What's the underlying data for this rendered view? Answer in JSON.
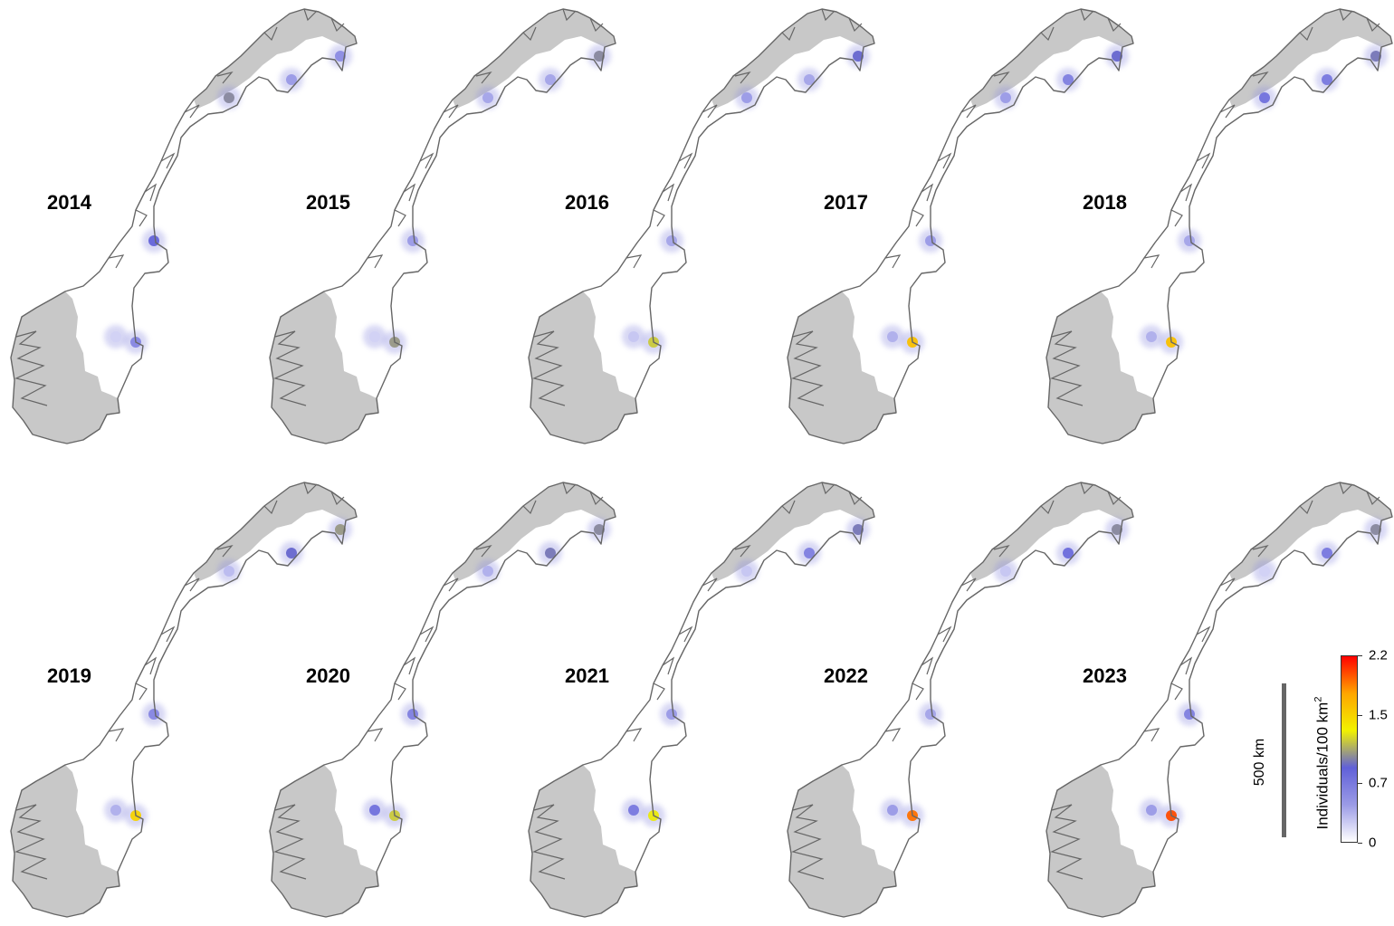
{
  "figure": {
    "panels": [
      {
        "year": "2014",
        "hotspots": [
          {
            "region": "finnmark-east",
            "level": 0.45
          },
          {
            "region": "finnmark-northeast",
            "level": 0.55
          },
          {
            "region": "troms",
            "level": 1.0
          },
          {
            "region": "nordland-south",
            "level": 0.85
          },
          {
            "region": "hedmark",
            "level": 0.6
          },
          {
            "region": "oppland",
            "level": 0.2
          }
        ]
      },
      {
        "year": "2015",
        "hotspots": [
          {
            "region": "finnmark-east",
            "level": 0.4
          },
          {
            "region": "finnmark-northeast",
            "level": 1.0
          },
          {
            "region": "troms",
            "level": 0.4
          },
          {
            "region": "nordland-south",
            "level": 0.45
          },
          {
            "region": "hedmark",
            "level": 1.05
          },
          {
            "region": "oppland",
            "level": 0.2
          }
        ]
      },
      {
        "year": "2016",
        "hotspots": [
          {
            "region": "finnmark-east",
            "level": 0.4
          },
          {
            "region": "finnmark-northeast",
            "level": 0.9
          },
          {
            "region": "troms",
            "level": 0.45
          },
          {
            "region": "nordland-south",
            "level": 0.4
          },
          {
            "region": "hedmark",
            "level": 1.2
          },
          {
            "region": "oppland",
            "level": 0.25
          }
        ]
      },
      {
        "year": "2017",
        "hotspots": [
          {
            "region": "finnmark-east",
            "level": 0.65
          },
          {
            "region": "finnmark-northeast",
            "level": 0.9
          },
          {
            "region": "troms",
            "level": 0.45
          },
          {
            "region": "nordland-south",
            "level": 0.45
          },
          {
            "region": "hedmark",
            "level": 1.6
          },
          {
            "region": "oppland",
            "level": 0.35
          }
        ]
      },
      {
        "year": "2018",
        "hotspots": [
          {
            "region": "finnmark-east",
            "level": 0.7
          },
          {
            "region": "finnmark-northeast",
            "level": 0.95
          },
          {
            "region": "troms",
            "level": 0.75
          },
          {
            "region": "nordland-south",
            "level": 0.4
          },
          {
            "region": "hedmark",
            "level": 1.6
          },
          {
            "region": "oppland",
            "level": 0.35
          }
        ]
      },
      {
        "year": "2019",
        "hotspots": [
          {
            "region": "finnmark-east",
            "level": 0.9
          },
          {
            "region": "finnmark-northeast",
            "level": 1.05
          },
          {
            "region": "troms",
            "level": 0.3
          },
          {
            "region": "nordland-south",
            "level": 0.6
          },
          {
            "region": "hedmark",
            "level": 1.5
          },
          {
            "region": "oppland",
            "level": 0.35
          }
        ]
      },
      {
        "year": "2020",
        "hotspots": [
          {
            "region": "finnmark-east",
            "level": 0.95
          },
          {
            "region": "finnmark-northeast",
            "level": 1.0
          },
          {
            "region": "troms",
            "level": 0.35
          },
          {
            "region": "nordland-south",
            "level": 0.65
          },
          {
            "region": "hedmark",
            "level": 1.2
          },
          {
            "region": "oppland",
            "level": 0.75
          }
        ]
      },
      {
        "year": "2021",
        "hotspots": [
          {
            "region": "finnmark-east",
            "level": 0.65
          },
          {
            "region": "finnmark-northeast",
            "level": 0.95
          },
          {
            "region": "troms",
            "level": 0.25
          },
          {
            "region": "nordland-south",
            "level": 0.45
          },
          {
            "region": "hedmark",
            "level": 1.3
          },
          {
            "region": "oppland",
            "level": 0.7
          }
        ]
      },
      {
        "year": "2022",
        "hotspots": [
          {
            "region": "finnmark-east",
            "level": 0.8
          },
          {
            "region": "finnmark-northeast",
            "level": 1.0
          },
          {
            "region": "troms",
            "level": 0.25
          },
          {
            "region": "nordland-south",
            "level": 0.4
          },
          {
            "region": "hedmark",
            "level": 1.9
          },
          {
            "region": "oppland",
            "level": 0.45
          }
        ]
      },
      {
        "year": "2023",
        "hotspots": [
          {
            "region": "finnmark-east",
            "level": 0.7
          },
          {
            "region": "finnmark-northeast",
            "level": 1.0
          },
          {
            "region": "troms",
            "level": 0.2
          },
          {
            "region": "nordland-south",
            "level": 0.65
          },
          {
            "region": "hedmark",
            "level": 2.0
          },
          {
            "region": "oppland",
            "level": 0.45
          }
        ]
      }
    ],
    "scale_bar": {
      "label": "500 km"
    },
    "legend": {
      "title": "Individuals/100 km",
      "title_superscript": "2",
      "ticks": [
        {
          "label": "2.2",
          "value": 2.2
        },
        {
          "label": "1.5",
          "value": 1.5
        },
        {
          "label": "0.7",
          "value": 0.7
        },
        {
          "label": "0",
          "value": 0
        }
      ],
      "range": [
        0,
        2.2
      ],
      "colors": [
        "#ffffff",
        "#9b9be6",
        "#6060d8",
        "#f2f200",
        "#ffa500",
        "#ff0000"
      ]
    },
    "map_colors": {
      "land_outside": "#c8c8c8",
      "study_area": "#ffffff",
      "border": "#666666"
    }
  }
}
